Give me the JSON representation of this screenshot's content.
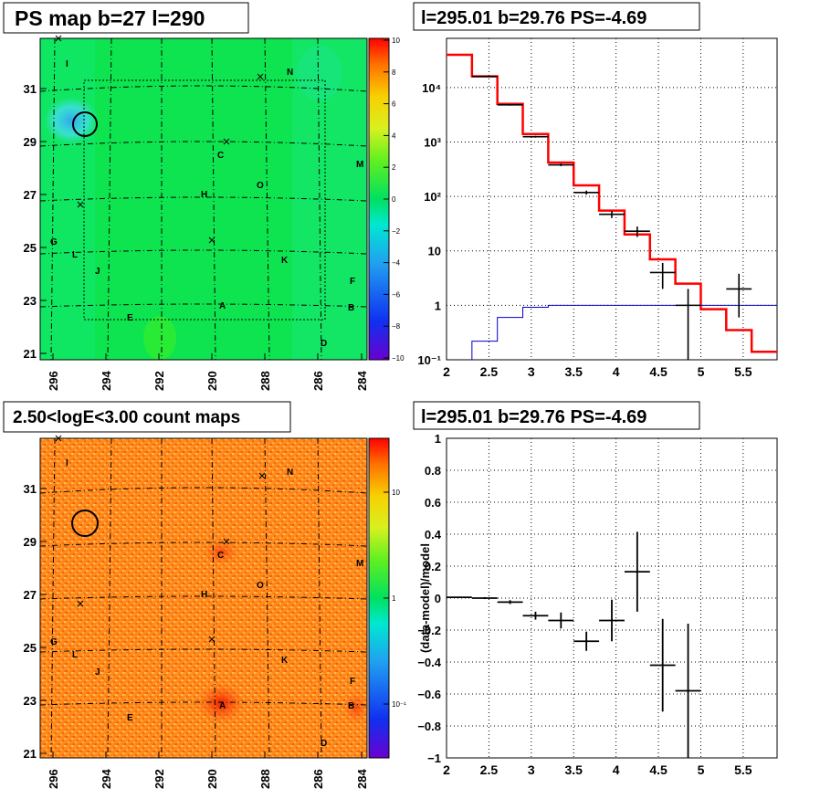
{
  "colors": {
    "palette_low": "#6a00d0",
    "palette_mid": "#00e000",
    "palette_high": "#ff0000",
    "model_line": "#ff0000",
    "background_line": "#0000c8",
    "data_points": "#000000"
  },
  "panels": {
    "map_ps": {
      "title": "PS map b=27 l=290",
      "x_ticks": [
        "296",
        "294",
        "292",
        "290",
        "288",
        "286",
        "284"
      ],
      "y_ticks": [
        "31",
        "29",
        "27",
        "25",
        "23",
        "21"
      ],
      "colorbar_ticks": [
        "10",
        "8",
        "6",
        "4",
        "2",
        "0",
        "−2",
        "−4",
        "−6",
        "−8",
        "−10"
      ],
      "labels": [
        "I",
        "N",
        "C",
        "M",
        "O",
        "H",
        "G",
        "L",
        "J",
        "K",
        "F",
        "A",
        "B",
        "E",
        "D"
      ]
    },
    "map_counts": {
      "title": "2.50<logE<3.00 count maps",
      "x_ticks": [
        "296",
        "294",
        "292",
        "290",
        "288",
        "286",
        "284"
      ],
      "y_ticks": [
        "31",
        "29",
        "27",
        "25",
        "23",
        "21"
      ],
      "colorbar_ticks": [
        "10",
        "1",
        "10⁻¹"
      ],
      "labels": [
        "I",
        "N",
        "C",
        "M",
        "O",
        "H",
        "G",
        "L",
        "J",
        "K",
        "F",
        "A",
        "B",
        "E",
        "D"
      ]
    },
    "spectrum_title": "l=295.01 b=29.76 PS=-4.69",
    "residual_title": "l=295.01 b=29.76 PS=-4.69"
  },
  "chart_data": [
    {
      "type": "line",
      "title": "l=295.01 b=29.76 PS=-4.69",
      "xlabel": "",
      "ylabel": "",
      "xlim": [
        2,
        5.9
      ],
      "ylim": [
        0.1,
        80000
      ],
      "yscale": "log",
      "x_ticks": [
        "2",
        "2.5",
        "3",
        "3.5",
        "4",
        "4.5",
        "5",
        "5.5"
      ],
      "y_ticks": [
        "10⁻¹",
        "1",
        "10",
        "10²",
        "10³",
        "10⁴"
      ],
      "model_steps": [
        [
          2.0,
          40000
        ],
        [
          2.3,
          16000
        ],
        [
          2.6,
          5000
        ],
        [
          2.9,
          1400
        ],
        [
          3.2,
          420
        ],
        [
          3.5,
          160
        ],
        [
          3.8,
          55
        ],
        [
          4.1,
          20
        ],
        [
          4.4,
          7
        ],
        [
          4.7,
          2.5
        ],
        [
          5.0,
          0.85
        ],
        [
          5.3,
          0.35
        ],
        [
          5.6,
          0.14
        ]
      ],
      "background_steps": [
        [
          2.3,
          0.22
        ],
        [
          2.6,
          0.6
        ],
        [
          2.9,
          0.92
        ],
        [
          3.2,
          1.0
        ],
        [
          5.9,
          1.0
        ]
      ],
      "data_points": [
        {
          "x": 2.45,
          "y": 16000,
          "xerr": 0.15,
          "ylo": 15500,
          "yhi": 16500
        },
        {
          "x": 2.75,
          "y": 4800,
          "xerr": 0.15,
          "ylo": 4650,
          "yhi": 4950
        },
        {
          "x": 3.05,
          "y": 1250,
          "xerr": 0.15,
          "ylo": 1200,
          "yhi": 1300
        },
        {
          "x": 3.35,
          "y": 380,
          "xerr": 0.15,
          "ylo": 360,
          "yhi": 400
        },
        {
          "x": 3.65,
          "y": 118,
          "xerr": 0.15,
          "ylo": 108,
          "yhi": 128
        },
        {
          "x": 3.95,
          "y": 47,
          "xerr": 0.15,
          "ylo": 40,
          "yhi": 54
        },
        {
          "x": 4.25,
          "y": 23,
          "xerr": 0.15,
          "ylo": 18,
          "yhi": 28
        },
        {
          "x": 4.55,
          "y": 4,
          "xerr": 0.15,
          "ylo": 2,
          "yhi": 6
        },
        {
          "x": 4.85,
          "y": 1,
          "xerr": 0.15,
          "ylo": 0.1,
          "yhi": 2
        },
        {
          "x": 5.45,
          "y": 2,
          "xerr": 0.15,
          "ylo": 0.6,
          "yhi": 3.8
        }
      ]
    },
    {
      "type": "scatter",
      "title": "l=295.01 b=29.76 PS=-4.69",
      "xlabel": "",
      "ylabel": "(data-model)/model",
      "xlim": [
        2,
        5.9
      ],
      "ylim": [
        -1,
        1
      ],
      "x_ticks": [
        "2",
        "2.5",
        "3",
        "3.5",
        "4",
        "4.5",
        "5",
        "5.5"
      ],
      "y_ticks": [
        "1",
        "0.8",
        "0.6",
        "0.4",
        "0.2",
        "0",
        "−0.2",
        "−0.4",
        "−0.6",
        "−0.8",
        "−1"
      ],
      "points": [
        {
          "x": 2.15,
          "y": 0.005,
          "xerr": 0.15,
          "yerr": 0.004
        },
        {
          "x": 2.45,
          "y": 0.0,
          "xerr": 0.15,
          "yerr": 0.006
        },
        {
          "x": 2.75,
          "y": -0.025,
          "xerr": 0.15,
          "yerr": 0.012
        },
        {
          "x": 3.05,
          "y": -0.11,
          "xerr": 0.15,
          "yerr": 0.025
        },
        {
          "x": 3.35,
          "y": -0.14,
          "xerr": 0.15,
          "yerr": 0.05
        },
        {
          "x": 3.65,
          "y": -0.27,
          "xerr": 0.15,
          "yerr": 0.06
        },
        {
          "x": 3.95,
          "y": -0.14,
          "xerr": 0.15,
          "yerr": 0.13
        },
        {
          "x": 4.25,
          "y": 0.165,
          "xerr": 0.15,
          "yerr": 0.25
        },
        {
          "x": 4.55,
          "y": -0.42,
          "xerr": 0.15,
          "yerr": 0.29
        },
        {
          "x": 4.85,
          "y": -0.58,
          "xerr": 0.15,
          "yerr": 0.42
        }
      ]
    }
  ]
}
